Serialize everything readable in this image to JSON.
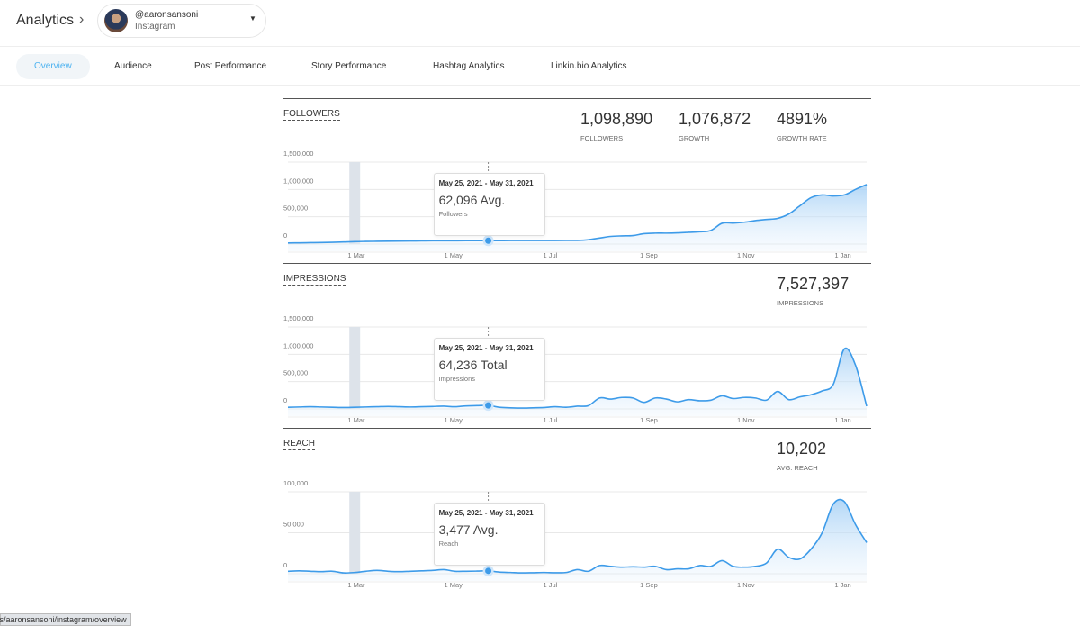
{
  "header": {
    "title": "Analytics",
    "chevron": "›",
    "account": {
      "handle": "@aaronsansoni",
      "network": "Instagram",
      "caret": "▼"
    }
  },
  "tabs": [
    {
      "label": "Overview",
      "active": true
    },
    {
      "label": "Audience"
    },
    {
      "label": "Post Performance"
    },
    {
      "label": "Story Performance"
    },
    {
      "label": "Hashtag Analytics"
    },
    {
      "label": "Linkin.bio Analytics"
    }
  ],
  "status_url": "ts/aaronsansoni/instagram/overview",
  "colors": {
    "line": "#3d9be9",
    "band": "#dde3ea",
    "accent": "#4cb2f0"
  },
  "chart_data": [
    {
      "type": "area",
      "title": "FOLLOWERS",
      "stats": [
        {
          "value": "1,098,890",
          "label": "FOLLOWERS"
        },
        {
          "value": "1,076,872",
          "label": "GROWTH"
        },
        {
          "value": "4891%",
          "label": "GROWTH RATE"
        }
      ],
      "yticks": [
        "1,500,000",
        "1,000,000",
        "500,000",
        "0"
      ],
      "ylim": [
        0,
        1500000
      ],
      "xticks": [
        "1 Mar",
        "1 May",
        "1 Jul",
        "1 Sep",
        "1 Nov",
        "1 Jan"
      ],
      "tooltip": {
        "index": 18,
        "range": "May 25, 2021 - May 31, 2021",
        "value": "62,096 Avg.",
        "label": "Followers"
      },
      "highlight_index": 6,
      "values": [
        20000,
        22000,
        25000,
        28000,
        32000,
        38000,
        45000,
        48000,
        50000,
        52000,
        54000,
        56000,
        58000,
        60000,
        61000,
        61500,
        61800,
        62000,
        62096,
        63000,
        64000,
        64500,
        65000,
        65000,
        65500,
        66000,
        67000,
        80000,
        110000,
        140000,
        150000,
        155000,
        190000,
        200000,
        200000,
        205000,
        215000,
        225000,
        250000,
        380000,
        385000,
        400000,
        430000,
        450000,
        470000,
        550000,
        700000,
        850000,
        900000,
        880000,
        900000,
        1000000,
        1090000
      ]
    },
    {
      "type": "area",
      "title": "IMPRESSIONS",
      "stats": [
        {
          "value": "7,527,397",
          "label": "IMPRESSIONS"
        }
      ],
      "yticks": [
        "1,500,000",
        "1,000,000",
        "500,000",
        "0"
      ],
      "ylim": [
        0,
        1500000
      ],
      "xticks": [
        "1 Mar",
        "1 May",
        "1 Jul",
        "1 Sep",
        "1 Nov",
        "1 Jan"
      ],
      "tooltip": {
        "index": 18,
        "range": "May 25, 2021 - May 31, 2021",
        "value": "64,236 Total",
        "label": "Impressions"
      },
      "highlight_index": 6,
      "values": [
        30000,
        35000,
        40000,
        35000,
        30000,
        25000,
        30000,
        35000,
        40000,
        45000,
        40000,
        35000,
        40000,
        45000,
        50000,
        40000,
        55000,
        60000,
        64236,
        30000,
        20000,
        15000,
        20000,
        25000,
        40000,
        30000,
        50000,
        60000,
        200000,
        180000,
        210000,
        200000,
        120000,
        200000,
        180000,
        130000,
        170000,
        150000,
        160000,
        240000,
        190000,
        210000,
        200000,
        160000,
        320000,
        170000,
        220000,
        260000,
        330000,
        450000,
        1100000,
        800000,
        50000
      ]
    },
    {
      "type": "area",
      "title": "REACH",
      "stats": [
        {
          "value": "10,202",
          "label": "AVG. REACH"
        }
      ],
      "yticks": [
        "100,000",
        "50,000",
        "0"
      ],
      "ylim": [
        0,
        100000
      ],
      "xticks": [
        "1 Mar",
        "1 May",
        "1 Jul",
        "1 Sep",
        "1 Nov",
        "1 Jan"
      ],
      "tooltip": {
        "index": 18,
        "range": "May 25, 2021 - May 31, 2021",
        "value": "3,477 Avg.",
        "label": "Reach"
      },
      "highlight_index": 6,
      "values": [
        3000,
        3500,
        3000,
        2500,
        3000,
        1000,
        1500,
        3000,
        4000,
        3000,
        2500,
        3000,
        3500,
        4000,
        5000,
        3000,
        3000,
        3200,
        3477,
        2000,
        1500,
        1000,
        1200,
        1500,
        1200,
        1500,
        5000,
        3000,
        10000,
        9000,
        8000,
        8500,
        8000,
        9000,
        5000,
        6000,
        6000,
        10000,
        9000,
        16000,
        9000,
        8000,
        9000,
        13000,
        30000,
        20000,
        18000,
        30000,
        50000,
        85000,
        88000,
        60000,
        38000
      ]
    }
  ]
}
